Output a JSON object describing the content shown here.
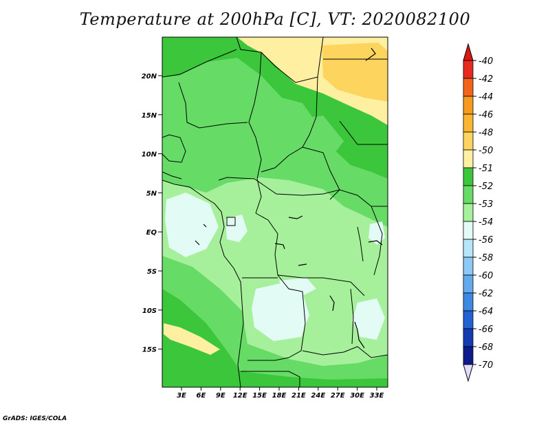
{
  "title": "Temperature at 200hPa [C], VT: 2020082100",
  "credit": "GrADS: IGES/COLA",
  "map": {
    "lat_ticks": [
      "20N",
      "15N",
      "10N",
      "5N",
      "EQ",
      "5S",
      "10S",
      "15S"
    ],
    "lon_ticks": [
      "3E",
      "6E",
      "9E",
      "12E",
      "15E",
      "18E",
      "21E",
      "24E",
      "27E",
      "30E",
      "33E"
    ]
  },
  "legend": {
    "levels": [
      {
        "label": "-40",
        "color": "#e62a1f"
      },
      {
        "label": "-42",
        "color": "#f2641a"
      },
      {
        "label": "-44",
        "color": "#f79a20"
      },
      {
        "label": "-46",
        "color": "#fab531"
      },
      {
        "label": "-48",
        "color": "#fcd45e"
      },
      {
        "label": "-50",
        "color": "#fef0a0"
      },
      {
        "label": "-51",
        "color": "#3cc63c"
      },
      {
        "label": "-52",
        "color": "#66db66"
      },
      {
        "label": "-53",
        "color": "#a6f09b"
      },
      {
        "label": "-54",
        "color": "#e2fbf4"
      },
      {
        "label": "-56",
        "color": "#b6e6fa"
      },
      {
        "label": "-58",
        "color": "#8ec8f4"
      },
      {
        "label": "-60",
        "color": "#64abee"
      },
      {
        "label": "-62",
        "color": "#3c88e2"
      },
      {
        "label": "-64",
        "color": "#2262d2"
      },
      {
        "label": "-66",
        "color": "#143cb2"
      },
      {
        "label": "-68",
        "color": "#0c1a8c"
      },
      {
        "label": "-70",
        "color": "#e4dcfc"
      }
    ],
    "top_arrow_color": "#d91a14",
    "bottom_arrow_color": "#e4dcfc"
  }
}
